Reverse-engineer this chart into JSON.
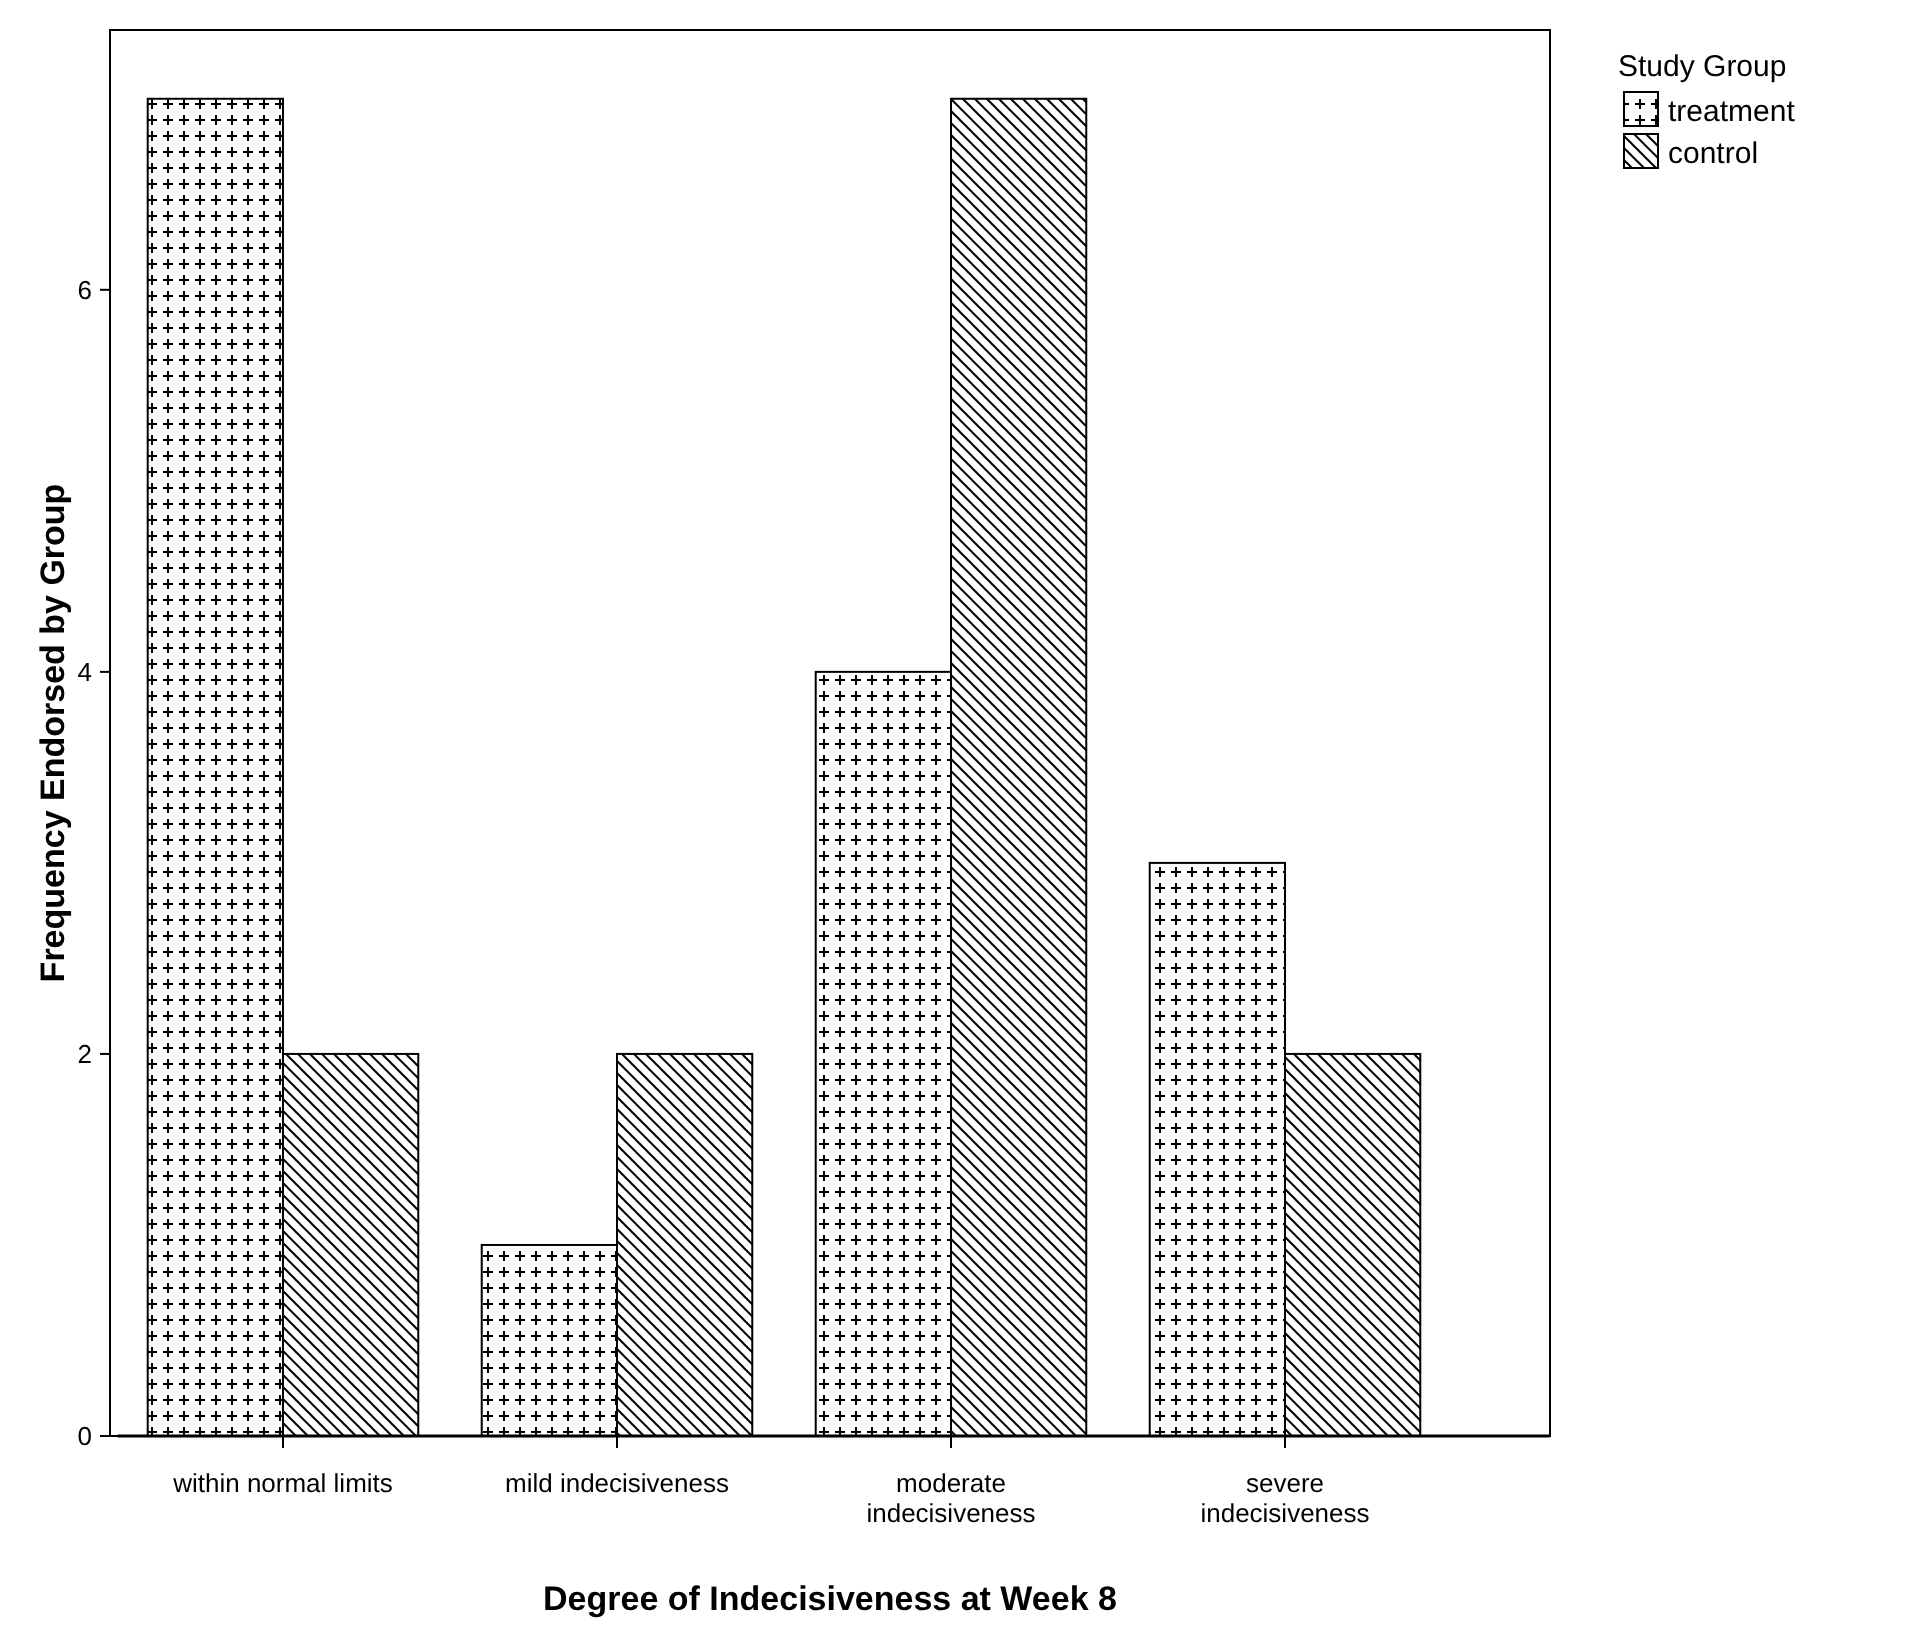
{
  "chart_data": {
    "type": "bar",
    "xlabel": "Degree of Indecisiveness at Week 8",
    "ylabel": "Frequency Endorsed by Group",
    "legend_title": "Study Group",
    "categories": [
      "within normal limits",
      "mild indecisiveness",
      "moderate indecisiveness",
      "severe indecisiveness"
    ],
    "series": [
      {
        "name": "treatment",
        "color": "#000000",
        "values": [
          7,
          1,
          4,
          3
        ]
      },
      {
        "name": "control",
        "color": "#000000",
        "values": [
          2,
          2,
          7,
          2
        ]
      }
    ],
    "ylim": [
      0,
      7.36
    ],
    "yticks": [
      0,
      2,
      4,
      6
    ],
    "grid": false,
    "legend": "top right"
  }
}
